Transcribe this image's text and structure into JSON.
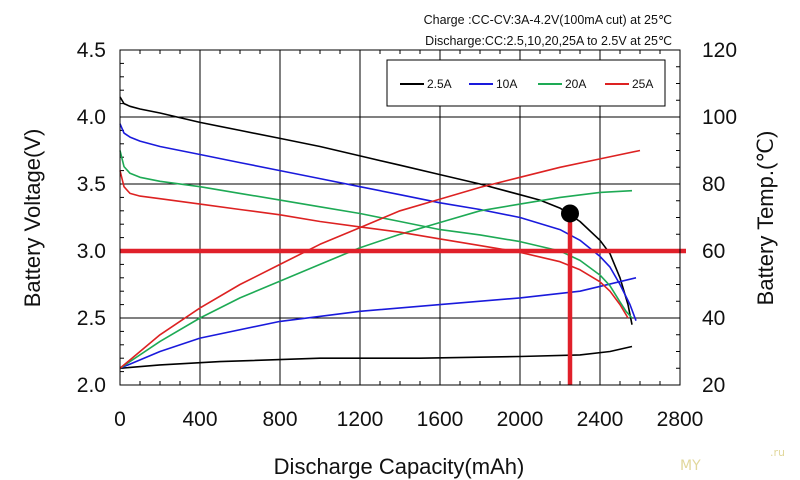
{
  "chart_data": {
    "type": "line",
    "annotations": [
      "Charge :CC-CV:3A-4.2V(100mA  cut) at 25℃",
      "Discharge:CC:2.5,10,20,25A  to 2.5V at 25℃"
    ],
    "xlabel": "Discharge Capacity(mAh)",
    "ylabel_left": "Battery Voltage(V)",
    "ylabel_right": "Battery Temp.(℃)",
    "xlim": [
      0,
      2800
    ],
    "ylim_left": [
      2.0,
      4.5
    ],
    "ylim_right": [
      20,
      120
    ],
    "x_ticks": [
      "0",
      "400",
      "800",
      "1200",
      "1600",
      "2000",
      "2400",
      "2800"
    ],
    "y_left_ticks": [
      "2.0",
      "2.5",
      "3.0",
      "3.5",
      "4.0",
      "4.5"
    ],
    "y_right_ticks": [
      "20",
      "40",
      "60",
      "80",
      "100",
      "120"
    ],
    "grid": true,
    "legend_position": "top-right",
    "series": [
      {
        "name": "2.5A",
        "color": "#000000",
        "voltage": [
          [
            0,
            4.15
          ],
          [
            20,
            4.1
          ],
          [
            50,
            4.08
          ],
          [
            100,
            4.06
          ],
          [
            200,
            4.03
          ],
          [
            400,
            3.96
          ],
          [
            600,
            3.9
          ],
          [
            800,
            3.84
          ],
          [
            1000,
            3.78
          ],
          [
            1200,
            3.71
          ],
          [
            1400,
            3.64
          ],
          [
            1600,
            3.57
          ],
          [
            1800,
            3.5
          ],
          [
            2000,
            3.42
          ],
          [
            2100,
            3.38
          ],
          [
            2200,
            3.32
          ],
          [
            2300,
            3.22
          ],
          [
            2400,
            3.08
          ],
          [
            2450,
            2.98
          ],
          [
            2500,
            2.8
          ],
          [
            2540,
            2.6
          ],
          [
            2560,
            2.45
          ]
        ],
        "temp": [
          [
            0,
            25
          ],
          [
            200,
            26
          ],
          [
            500,
            27
          ],
          [
            1000,
            28
          ],
          [
            1500,
            28
          ],
          [
            2000,
            28.5
          ],
          [
            2300,
            29
          ],
          [
            2450,
            30
          ],
          [
            2560,
            31.5
          ]
        ]
      },
      {
        "name": "10A",
        "color": "#1a1adc",
        "voltage": [
          [
            0,
            3.95
          ],
          [
            20,
            3.88
          ],
          [
            50,
            3.85
          ],
          [
            100,
            3.82
          ],
          [
            200,
            3.78
          ],
          [
            400,
            3.72
          ],
          [
            600,
            3.66
          ],
          [
            800,
            3.6
          ],
          [
            1000,
            3.54
          ],
          [
            1200,
            3.48
          ],
          [
            1400,
            3.42
          ],
          [
            1600,
            3.36
          ],
          [
            1800,
            3.31
          ],
          [
            2000,
            3.25
          ],
          [
            2200,
            3.16
          ],
          [
            2300,
            3.08
          ],
          [
            2400,
            2.96
          ],
          [
            2450,
            2.88
          ],
          [
            2500,
            2.75
          ],
          [
            2550,
            2.6
          ],
          [
            2580,
            2.48
          ]
        ],
        "temp": [
          [
            0,
            25
          ],
          [
            200,
            30
          ],
          [
            400,
            34
          ],
          [
            800,
            39
          ],
          [
            1200,
            42
          ],
          [
            1600,
            44
          ],
          [
            2000,
            46
          ],
          [
            2300,
            48
          ],
          [
            2580,
            52
          ]
        ]
      },
      {
        "name": "20A",
        "color": "#1eaa55",
        "voltage": [
          [
            0,
            3.75
          ],
          [
            20,
            3.63
          ],
          [
            50,
            3.58
          ],
          [
            100,
            3.55
          ],
          [
            200,
            3.52
          ],
          [
            400,
            3.48
          ],
          [
            600,
            3.43
          ],
          [
            800,
            3.38
          ],
          [
            1000,
            3.33
          ],
          [
            1200,
            3.28
          ],
          [
            1400,
            3.22
          ],
          [
            1600,
            3.16
          ],
          [
            1800,
            3.12
          ],
          [
            2000,
            3.07
          ],
          [
            2200,
            3.0
          ],
          [
            2300,
            2.93
          ],
          [
            2400,
            2.82
          ],
          [
            2450,
            2.74
          ],
          [
            2500,
            2.62
          ],
          [
            2530,
            2.55
          ],
          [
            2560,
            2.5
          ]
        ],
        "temp": [
          [
            0,
            25
          ],
          [
            200,
            33
          ],
          [
            400,
            40
          ],
          [
            600,
            46
          ],
          [
            800,
            51
          ],
          [
            1000,
            56
          ],
          [
            1200,
            61
          ],
          [
            1400,
            65
          ],
          [
            1600,
            68.5
          ],
          [
            1800,
            72
          ],
          [
            2000,
            74
          ],
          [
            2200,
            76
          ],
          [
            2400,
            77.5
          ],
          [
            2560,
            78
          ]
        ]
      },
      {
        "name": "25A",
        "color": "#dd2222",
        "voltage": [
          [
            0,
            3.6
          ],
          [
            20,
            3.48
          ],
          [
            50,
            3.43
          ],
          [
            100,
            3.41
          ],
          [
            200,
            3.39
          ],
          [
            400,
            3.35
          ],
          [
            600,
            3.31
          ],
          [
            800,
            3.27
          ],
          [
            1000,
            3.22
          ],
          [
            1200,
            3.18
          ],
          [
            1400,
            3.14
          ],
          [
            1600,
            3.09
          ],
          [
            1800,
            3.04
          ],
          [
            2000,
            2.99
          ],
          [
            2200,
            2.92
          ],
          [
            2300,
            2.86
          ],
          [
            2400,
            2.77
          ],
          [
            2450,
            2.7
          ],
          [
            2500,
            2.6
          ],
          [
            2540,
            2.5
          ]
        ],
        "temp": [
          [
            0,
            25
          ],
          [
            200,
            35
          ],
          [
            400,
            43
          ],
          [
            600,
            50
          ],
          [
            800,
            56
          ],
          [
            1000,
            62
          ],
          [
            1200,
            67
          ],
          [
            1400,
            72
          ],
          [
            1600,
            75.5
          ],
          [
            1800,
            79
          ],
          [
            2000,
            82
          ],
          [
            2200,
            85
          ],
          [
            2400,
            87.5
          ],
          [
            2600,
            90
          ]
        ]
      }
    ],
    "overlay": {
      "color": "#e0202a",
      "horizontal_line_voltage": 3.0,
      "vertical_line_capacity": 2250,
      "marker": {
        "capacity": 2250,
        "voltage": 3.28,
        "color": "#000000"
      }
    }
  },
  "watermark": {
    "text": "MY",
    "suffix": ".ru"
  }
}
